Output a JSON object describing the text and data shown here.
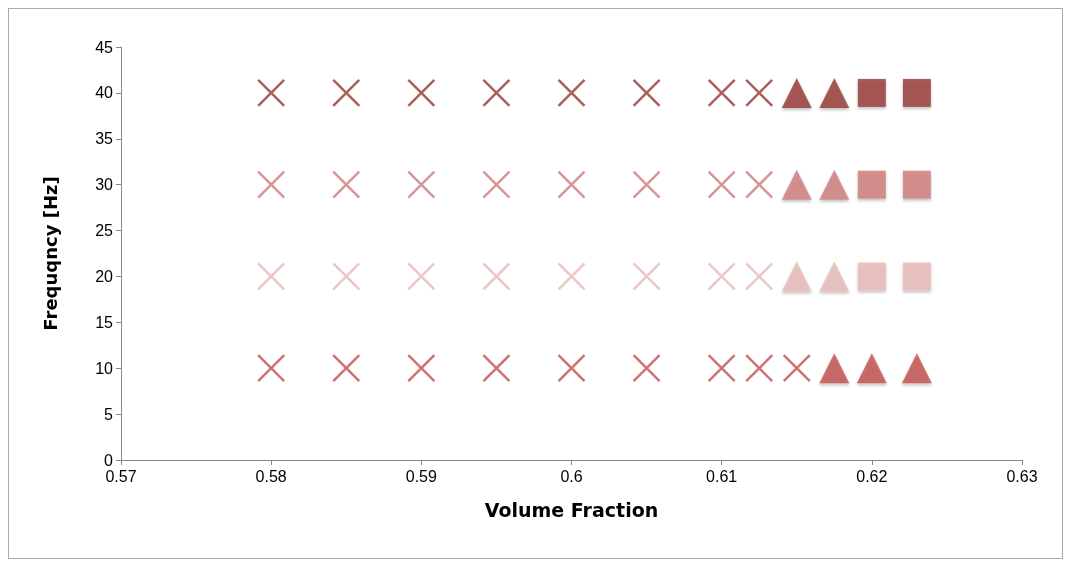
{
  "chart_data": {
    "type": "scatter",
    "xlabel": "Volume Fraction",
    "ylabel": "Frequqncy [Hz]",
    "xlim": [
      0.57,
      0.63
    ],
    "xticks": [
      0.57,
      0.58,
      0.59,
      0.6,
      0.61,
      0.62,
      0.63
    ],
    "ylim": [
      0,
      45
    ],
    "yticks": [
      0,
      5,
      10,
      15,
      20,
      25,
      30,
      35,
      40,
      45
    ],
    "grid": false,
    "series": [
      {
        "color": "#953735",
        "marker": "cross",
        "x": [
          0.58,
          0.585,
          0.59,
          0.595,
          0.6,
          0.605,
          0.61,
          0.6125
        ],
        "values": [
          40,
          40,
          40,
          40,
          40,
          40,
          40,
          40
        ]
      },
      {
        "color": "#953735",
        "marker": "triangle",
        "x": [
          0.615,
          0.6175
        ],
        "values": [
          40,
          40
        ]
      },
      {
        "color": "#953735",
        "marker": "square",
        "x": [
          0.62,
          0.623
        ],
        "values": [
          40,
          40
        ]
      },
      {
        "color": "#cd7b7a",
        "marker": "cross",
        "x": [
          0.58,
          0.585,
          0.59,
          0.595,
          0.6,
          0.605,
          0.61,
          0.6125
        ],
        "values": [
          30,
          30,
          30,
          30,
          30,
          30,
          30,
          30
        ]
      },
      {
        "color": "#cd7b7a",
        "marker": "triangle",
        "x": [
          0.615,
          0.6175
        ],
        "values": [
          30,
          30
        ]
      },
      {
        "color": "#cd7b7a",
        "marker": "square",
        "x": [
          0.62,
          0.623
        ],
        "values": [
          30,
          30
        ]
      },
      {
        "color": "#e6b9b8",
        "marker": "cross",
        "x": [
          0.58,
          0.585,
          0.59,
          0.595,
          0.6,
          0.605,
          0.61,
          0.6125
        ],
        "values": [
          20,
          20,
          20,
          20,
          20,
          20,
          20,
          20
        ]
      },
      {
        "color": "#e6b9b8",
        "marker": "triangle",
        "x": [
          0.615,
          0.6175
        ],
        "values": [
          20,
          20
        ]
      },
      {
        "color": "#e6b9b8",
        "marker": "square",
        "x": [
          0.62,
          0.623
        ],
        "values": [
          20,
          20
        ]
      },
      {
        "color": "#c0504d",
        "marker": "cross",
        "x": [
          0.58,
          0.585,
          0.59,
          0.595,
          0.6,
          0.605,
          0.61,
          0.6125,
          0.615
        ],
        "values": [
          10,
          10,
          10,
          10,
          10,
          10,
          10,
          10,
          10
        ]
      },
      {
        "color": "#c0504d",
        "marker": "triangle",
        "x": [
          0.6175,
          0.62,
          0.623
        ],
        "values": [
          10,
          10,
          10
        ]
      }
    ]
  }
}
